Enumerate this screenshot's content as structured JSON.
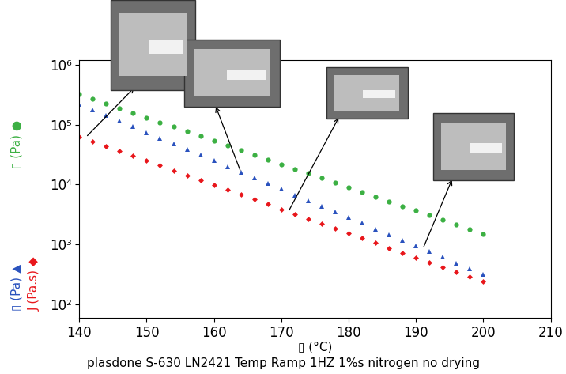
{
  "chart_data": {
    "type": "scatter",
    "title": "plasdone S-630 LN2421 Temp Ramp 1HZ 1%s nitrogen no drying",
    "x_label": "▯ (°C)",
    "log": "y",
    "grid": false,
    "xlim": [
      140,
      210
    ],
    "xticks": [
      140,
      150,
      160,
      170,
      180,
      190,
      200,
      210
    ],
    "ylim": [
      60,
      1200000
    ],
    "yticks": [
      {
        "value": 100,
        "label": "10²"
      },
      {
        "value": 1000,
        "label": "10³"
      },
      {
        "value": 10000,
        "label": "10⁴"
      },
      {
        "value": 100000,
        "label": "10⁵"
      },
      {
        "value": 1000000,
        "label": "10⁶"
      }
    ],
    "x": [
      140,
      142,
      144,
      146,
      148,
      150,
      152,
      154,
      156,
      158,
      160,
      162,
      164,
      166,
      168,
      170,
      172,
      174,
      176,
      178,
      180,
      182,
      184,
      186,
      188,
      190,
      192,
      194,
      196,
      198,
      200
    ],
    "series": [
      {
        "axis_label": "▯ (Pa) ●",
        "color": "#3cb043",
        "marker": "circle",
        "line_style": "none",
        "values": [
          320000,
          267000,
          224000,
          187000,
          156000,
          131000,
          109000,
          91600,
          76600,
          64000,
          53500,
          44800,
          37500,
          31300,
          26200,
          21900,
          18300,
          15300,
          12800,
          10700,
          8970,
          7500,
          6280,
          5250,
          4390,
          3670,
          3070,
          2570,
          2150,
          1800,
          1500
        ]
      },
      {
        "axis_label": "▯ (Pa) ▲",
        "color": "#2a52be",
        "marker": "triangle",
        "line_style": "none",
        "values": [
          220000,
          177000,
          142000,
          114000,
          91900,
          73900,
          59400,
          47900,
          38500,
          30900,
          24900,
          20000,
          16100,
          12900,
          10400,
          8370,
          6730,
          5420,
          4360,
          3500,
          2820,
          2260,
          1820,
          1470,
          1180,
          948,
          762,
          614,
          493,
          396,
          320
        ]
      },
      {
        "axis_label": "J (Pa.s) ◆",
        "color": "#e8161b",
        "marker": "diamond",
        "line_style": "none",
        "values": [
          63100,
          52400,
          43500,
          36100,
          30000,
          24900,
          20700,
          17200,
          14300,
          11800,
          9840,
          8170,
          6790,
          5640,
          4680,
          3890,
          3230,
          2680,
          2230,
          1850,
          1530,
          1270,
          1060,
          879,
          730,
          607,
          504,
          418,
          347,
          288,
          240
        ]
      }
    ]
  }
}
